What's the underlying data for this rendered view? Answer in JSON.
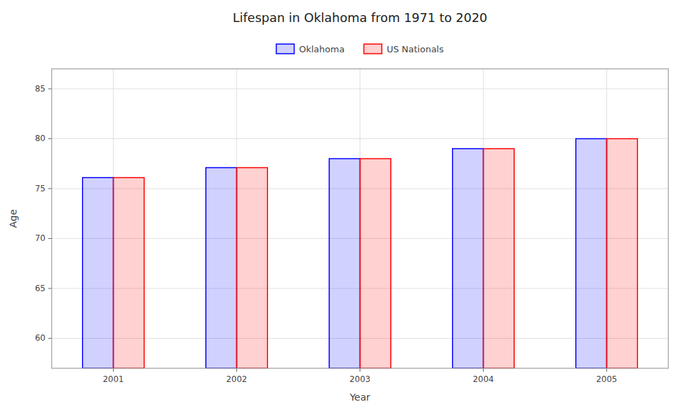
{
  "chart_data": {
    "type": "bar",
    "title": "Lifespan in Oklahoma from 1971 to 2020",
    "x_label": "Year",
    "y_label": "Age",
    "categories": [
      "2001",
      "2002",
      "2003",
      "2004",
      "2005"
    ],
    "series": [
      {
        "name": "Oklahoma",
        "color": "#0000ff",
        "values": [
          76.1,
          77.1,
          78.0,
          79.0,
          80.0
        ]
      },
      {
        "name": "US Nationals",
        "color": "#ff0000",
        "values": [
          76.1,
          77.1,
          78.0,
          79.0,
          80.0
        ]
      }
    ],
    "ylim": [
      57,
      87
    ],
    "yticks": [
      60,
      65,
      70,
      75,
      80,
      85
    ],
    "grid": true,
    "legend": "top"
  }
}
